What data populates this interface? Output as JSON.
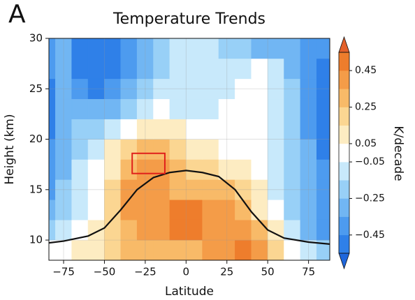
{
  "chart_data": {
    "type": "contour",
    "panel_label": "A",
    "title": "Temperature Trends",
    "xlabel": "Latitude",
    "ylabel": "Height (km)",
    "colorbar_label": "K/decade",
    "xlim": [
      -84,
      88
    ],
    "ylim": [
      8,
      30
    ],
    "xticks": [
      {
        "value": -75,
        "label": "−75"
      },
      {
        "value": -50,
        "label": "−50"
      },
      {
        "value": -25,
        "label": "−25"
      },
      0,
      25,
      50,
      75
    ],
    "yticks": [
      10,
      15,
      20,
      25,
      30
    ],
    "grid": true,
    "x": [
      -85,
      -75,
      -65,
      -55,
      -45,
      -35,
      -25,
      -15,
      -5,
      5,
      15,
      25,
      35,
      45,
      55,
      65,
      75,
      85
    ],
    "y": [
      9,
      11,
      13,
      15,
      17,
      19,
      21,
      23,
      25,
      27,
      29
    ],
    "z": [
      [
        -0.05,
        0.0,
        0.05,
        0.1,
        0.2,
        0.25,
        0.25,
        0.3,
        0.3,
        0.3,
        0.35,
        0.4,
        0.5,
        0.4,
        0.2,
        0.0,
        -0.15,
        -0.25
      ],
      [
        -0.2,
        -0.1,
        0.0,
        0.1,
        0.2,
        0.3,
        0.35,
        0.4,
        0.45,
        0.45,
        0.4,
        0.4,
        0.35,
        0.25,
        0.1,
        -0.1,
        -0.3,
        -0.4
      ],
      [
        -0.35,
        -0.25,
        -0.1,
        0.0,
        0.2,
        0.35,
        0.35,
        0.4,
        0.45,
        0.45,
        0.4,
        0.35,
        0.25,
        0.1,
        -0.05,
        -0.2,
        -0.35,
        -0.45
      ],
      [
        -0.4,
        -0.25,
        -0.15,
        -0.05,
        0.15,
        0.35,
        0.4,
        0.35,
        0.3,
        0.3,
        0.3,
        0.25,
        0.15,
        0.05,
        -0.1,
        -0.25,
        -0.35,
        -0.45
      ],
      [
        -0.45,
        -0.3,
        -0.15,
        -0.05,
        0.1,
        0.3,
        0.4,
        0.35,
        0.25,
        0.2,
        0.15,
        0.1,
        0.05,
        -0.05,
        -0.1,
        -0.2,
        -0.35,
        -0.45
      ],
      [
        -0.45,
        -0.3,
        -0.2,
        -0.1,
        0.05,
        0.2,
        0.3,
        0.25,
        0.15,
        0.1,
        0.05,
        0.0,
        -0.05,
        -0.05,
        -0.1,
        -0.2,
        -0.35,
        -0.5
      ],
      [
        -0.5,
        -0.35,
        -0.25,
        -0.2,
        -0.1,
        0.0,
        0.1,
        0.1,
        0.05,
        0.0,
        -0.05,
        -0.05,
        -0.05,
        -0.05,
        -0.1,
        -0.2,
        -0.4,
        -0.5
      ],
      [
        -0.5,
        -0.35,
        -0.3,
        -0.35,
        -0.3,
        -0.2,
        -0.1,
        -0.05,
        -0.1,
        -0.1,
        -0.08,
        -0.05,
        -0.05,
        0.0,
        -0.1,
        -0.25,
        -0.4,
        -0.5
      ],
      [
        -0.5,
        -0.3,
        -0.4,
        -0.5,
        -0.45,
        -0.3,
        -0.25,
        -0.15,
        -0.1,
        -0.1,
        -0.1,
        -0.1,
        -0.05,
        0.0,
        -0.1,
        -0.25,
        -0.4,
        -0.5
      ],
      [
        -0.45,
        -0.3,
        -0.5,
        -0.55,
        -0.5,
        -0.4,
        -0.3,
        -0.2,
        -0.15,
        -0.1,
        -0.1,
        -0.1,
        -0.1,
        0.0,
        -0.15,
        -0.3,
        -0.4,
        -0.5
      ],
      [
        -0.45,
        -0.35,
        -0.55,
        -0.55,
        -0.5,
        -0.4,
        -0.3,
        -0.2,
        -0.15,
        -0.15,
        -0.15,
        -0.2,
        -0.25,
        -0.3,
        -0.35,
        -0.35,
        -0.45,
        -0.45
      ]
    ],
    "levels": [
      -0.55,
      -0.45,
      -0.35,
      -0.25,
      -0.15,
      -0.05,
      0.05,
      0.15,
      0.25,
      0.35,
      0.45,
      0.55
    ],
    "colors": [
      "#1f67dc",
      "#2f80e8",
      "#4d9bef",
      "#71b6f3",
      "#98d0f7",
      "#c8e9fb",
      "#ffffff",
      "#fdecc2",
      "#fbd692",
      "#f8ba68",
      "#f49c48",
      "#ee7d2c",
      "#e4612a"
    ],
    "colorbar_ticks": [
      {
        "value": -0.45,
        "label": "−0.45"
      },
      {
        "value": -0.25,
        "label": "−0.25"
      },
      {
        "value": -0.05,
        "label": "−0.05"
      },
      0.05,
      0.25,
      0.45
    ],
    "lines": [
      {
        "color": "#111111",
        "x": [
          -85,
          -75,
          -60,
          -50,
          -40,
          -30,
          -20,
          -10,
          0,
          10,
          20,
          30,
          40,
          50,
          60,
          75,
          88
        ],
        "y": [
          9.7,
          9.9,
          10.4,
          11.2,
          13,
          15,
          16.2,
          16.7,
          16.9,
          16.7,
          16.3,
          15,
          12.8,
          11,
          10.2,
          9.8,
          9.6
        ]
      }
    ],
    "highlight": {
      "color": "#e0201b",
      "x": [
        -33,
        -13
      ],
      "y": [
        16.6,
        18.6
      ]
    }
  }
}
